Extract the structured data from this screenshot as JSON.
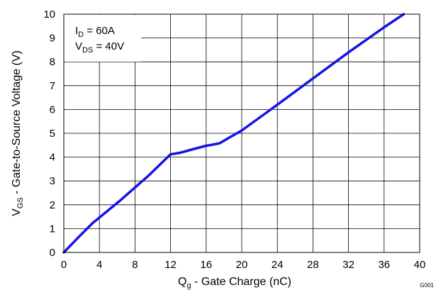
{
  "chart_data": {
    "type": "line",
    "xlabel": {
      "main": "Q",
      "sub": "g",
      "rest": " - Gate Charge  (nC)"
    },
    "ylabel": {
      "main": "V",
      "sub": "GS",
      "rest": " - Gate-to-Source Voltage (V)"
    },
    "xlim": [
      0,
      40
    ],
    "ylim": [
      0,
      10
    ],
    "xticks": [
      0,
      4,
      8,
      12,
      16,
      20,
      24,
      28,
      32,
      36,
      40
    ],
    "yticks": [
      0,
      1,
      2,
      3,
      4,
      5,
      6,
      7,
      8,
      9,
      10
    ],
    "grid": true,
    "annotation": [
      {
        "main": "I",
        "sub": "D",
        "rest": " = 60A"
      },
      {
        "main": "V",
        "sub": "DS",
        "rest": " = 40V"
      }
    ],
    "footnote": "G001",
    "series": [
      {
        "color": "#1414e6",
        "x": [
          0,
          1.6,
          3.2,
          6.4,
          9.6,
          12.0,
          13.0,
          14.5,
          16.0,
          16.5,
          17.5,
          18.5,
          20.0,
          24.0,
          28.0,
          32.0,
          36.0,
          38.2
        ],
        "y": [
          0,
          0.62,
          1.22,
          2.2,
          3.25,
          4.12,
          4.18,
          4.33,
          4.48,
          4.51,
          4.58,
          4.8,
          5.12,
          6.2,
          7.3,
          8.4,
          9.45,
          10.0
        ]
      }
    ]
  }
}
